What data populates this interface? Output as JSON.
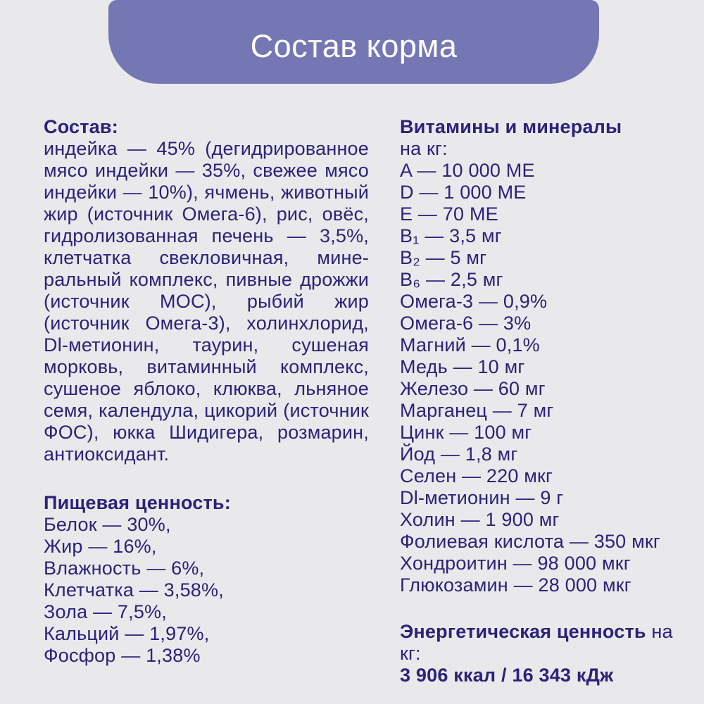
{
  "colors": {
    "background": "#e9e9ec",
    "banner": "#7577b5",
    "text": "#2b2279",
    "banner_text": "#ffffff"
  },
  "header": {
    "title": "Состав корма"
  },
  "left": {
    "composition": {
      "heading": "Состав:",
      "lines": [
        "индейка — 45% (дегидрированное",
        "мясо индейки — 35%, свежее мясо",
        "индейки — 10%), ячмень, животный",
        "жир (источник Омега-6), рис, овёс,",
        "гидролизованная печень — 3,5%,",
        "клетчатка свекловичная, мине-",
        "ральный комплекс, пивные дрожжи",
        "(источник МОС), рыбий жир",
        "(источник Омега-3), холинхлорид,",
        "Dl-метионин, таурин, сушеная",
        "морковь, витаминный комплекс,",
        "сушеное яблоко, клюква, льняное",
        "семя, календула, цикорий (источник",
        "ФОС), юкка Шидигера, розмарин,",
        "антиоксидант."
      ]
    },
    "nutrition": {
      "heading": "Пищевая ценность:",
      "lines": [
        "Белок — 30%,",
        "Жир — 16%,",
        "Влажность — 6%,",
        "Клетчатка — 3,58%,",
        "Зола — 7,5%,",
        "Кальций — 1,97%,",
        "Фосфор — 1,38%"
      ]
    }
  },
  "right": {
    "vitamins": {
      "heading": "Витамины и минералы",
      "subheading": "на кг:",
      "lines": [
        "A — 10 000 МЕ",
        "D — 1 000 МЕ",
        "E — 70 МЕ",
        "B₁ — 3,5 мг",
        "B₂ — 5 мг",
        "B₆ — 2,5 мг",
        "Омега-3 — 0,9%",
        "Омега-6 — 3%",
        "Магний — 0,1%",
        "Медь — 10 мг",
        "Железо — 60 мг",
        "Марганец — 7 мг",
        "Цинк — 100 мг",
        "Йод — 1,8 мг",
        "Селен — 220 мкг",
        "Dl-метионин — 9 г",
        "Холин — 1 900 мг",
        "Фолиевая кислота — 350 мкг",
        "Хондроитин — 98 000 мкг",
        "Глюкозамин — 28 000 мкг"
      ]
    },
    "energy": {
      "heading_bold": "Энергетическая ценность",
      "heading_regular": " на кг:",
      "value": "3 906 ккал / 16 343 кДж"
    }
  }
}
